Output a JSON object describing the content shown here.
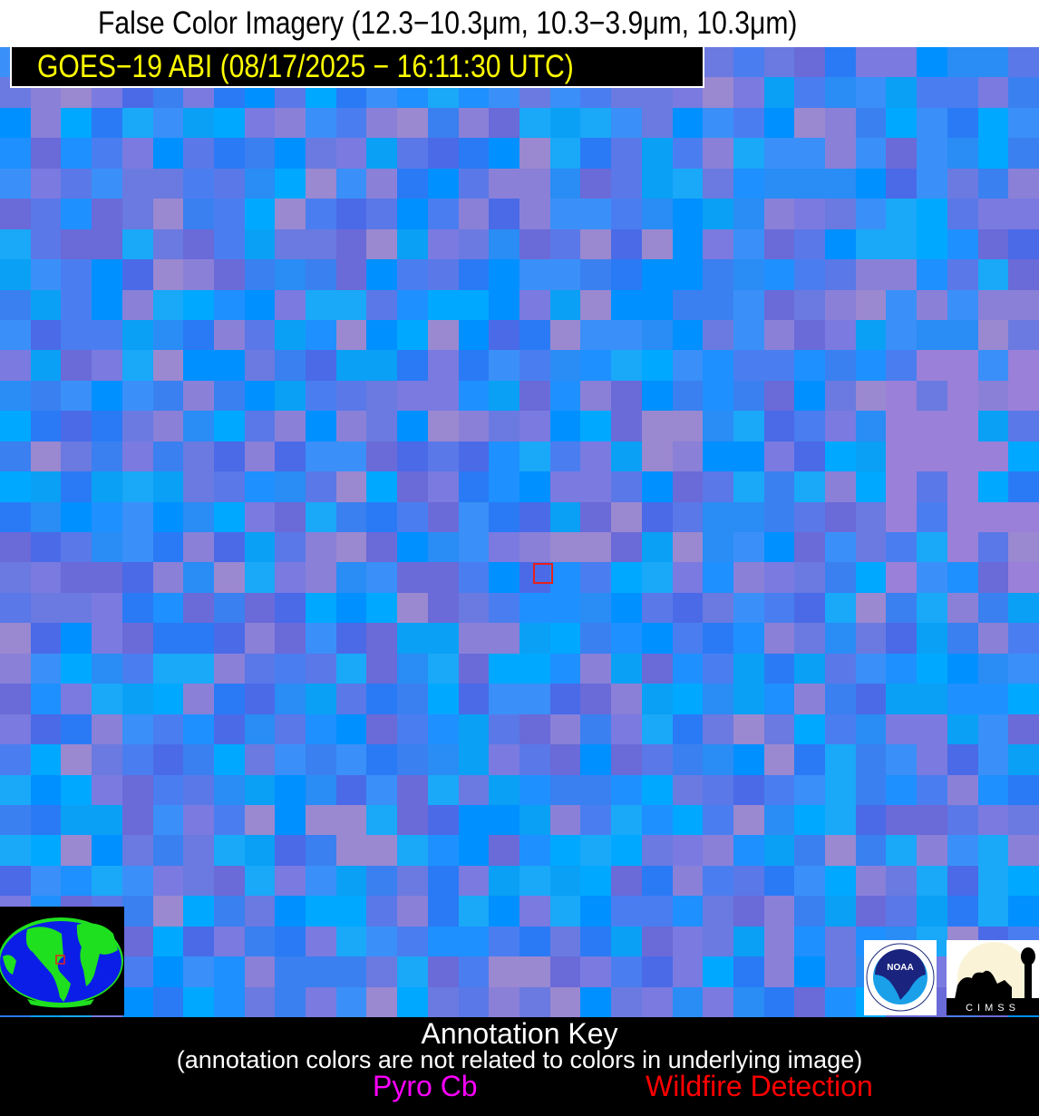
{
  "header": {
    "title": "False Color Imagery (12.3−10.3μm, 10.3−3.9μm, 10.3μm)"
  },
  "image": {
    "satellite_label": "GOES−19 ABI (08/17/2025 − 16:11:30 UTC)",
    "marker_color": "#e8201a"
  },
  "logos": {
    "noaa": "NOAA",
    "cimss": "CIMSS"
  },
  "annotation_key": {
    "title": "Annotation Key",
    "subtitle": "(annotation colors are not related to colors in underlying image)",
    "items": [
      {
        "label": "Pyro Cb",
        "color": "#ff00ff"
      },
      {
        "label": "Wildfire Detection",
        "color": "#ff0000"
      }
    ]
  }
}
